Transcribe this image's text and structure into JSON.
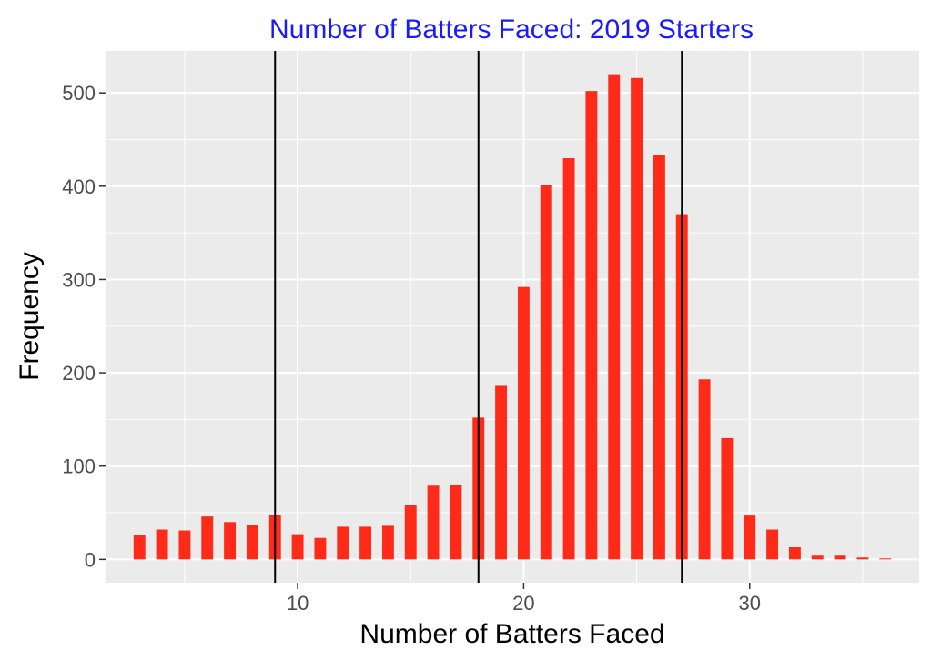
{
  "chart_data": {
    "type": "bar",
    "title": "Number of Batters Faced: 2019 Starters",
    "title_color": "#1a1aff",
    "xlabel": "Number of Batters Faced",
    "ylabel": "Frequency",
    "bar_color": "#ff2a17",
    "panel_background": "#ebebeb",
    "grid": true,
    "xlim": [
      1.5,
      37.5
    ],
    "ylim": [
      -25,
      545
    ],
    "x_ticks": [
      10,
      20,
      30
    ],
    "y_ticks": [
      0,
      100,
      200,
      300,
      400,
      500
    ],
    "x": [
      3,
      4,
      5,
      6,
      7,
      8,
      9,
      10,
      11,
      12,
      13,
      14,
      15,
      16,
      17,
      18,
      19,
      20,
      21,
      22,
      23,
      24,
      25,
      26,
      27,
      28,
      29,
      30,
      31,
      32,
      33,
      34,
      35,
      36
    ],
    "values": [
      26,
      32,
      31,
      46,
      40,
      37,
      48,
      27,
      23,
      35,
      35,
      36,
      58,
      79,
      80,
      152,
      186,
      292,
      401,
      430,
      502,
      520,
      516,
      433,
      370,
      193,
      130,
      47,
      32,
      13,
      4,
      4,
      2,
      1
    ],
    "reference_lines": [
      9,
      18,
      27
    ]
  }
}
